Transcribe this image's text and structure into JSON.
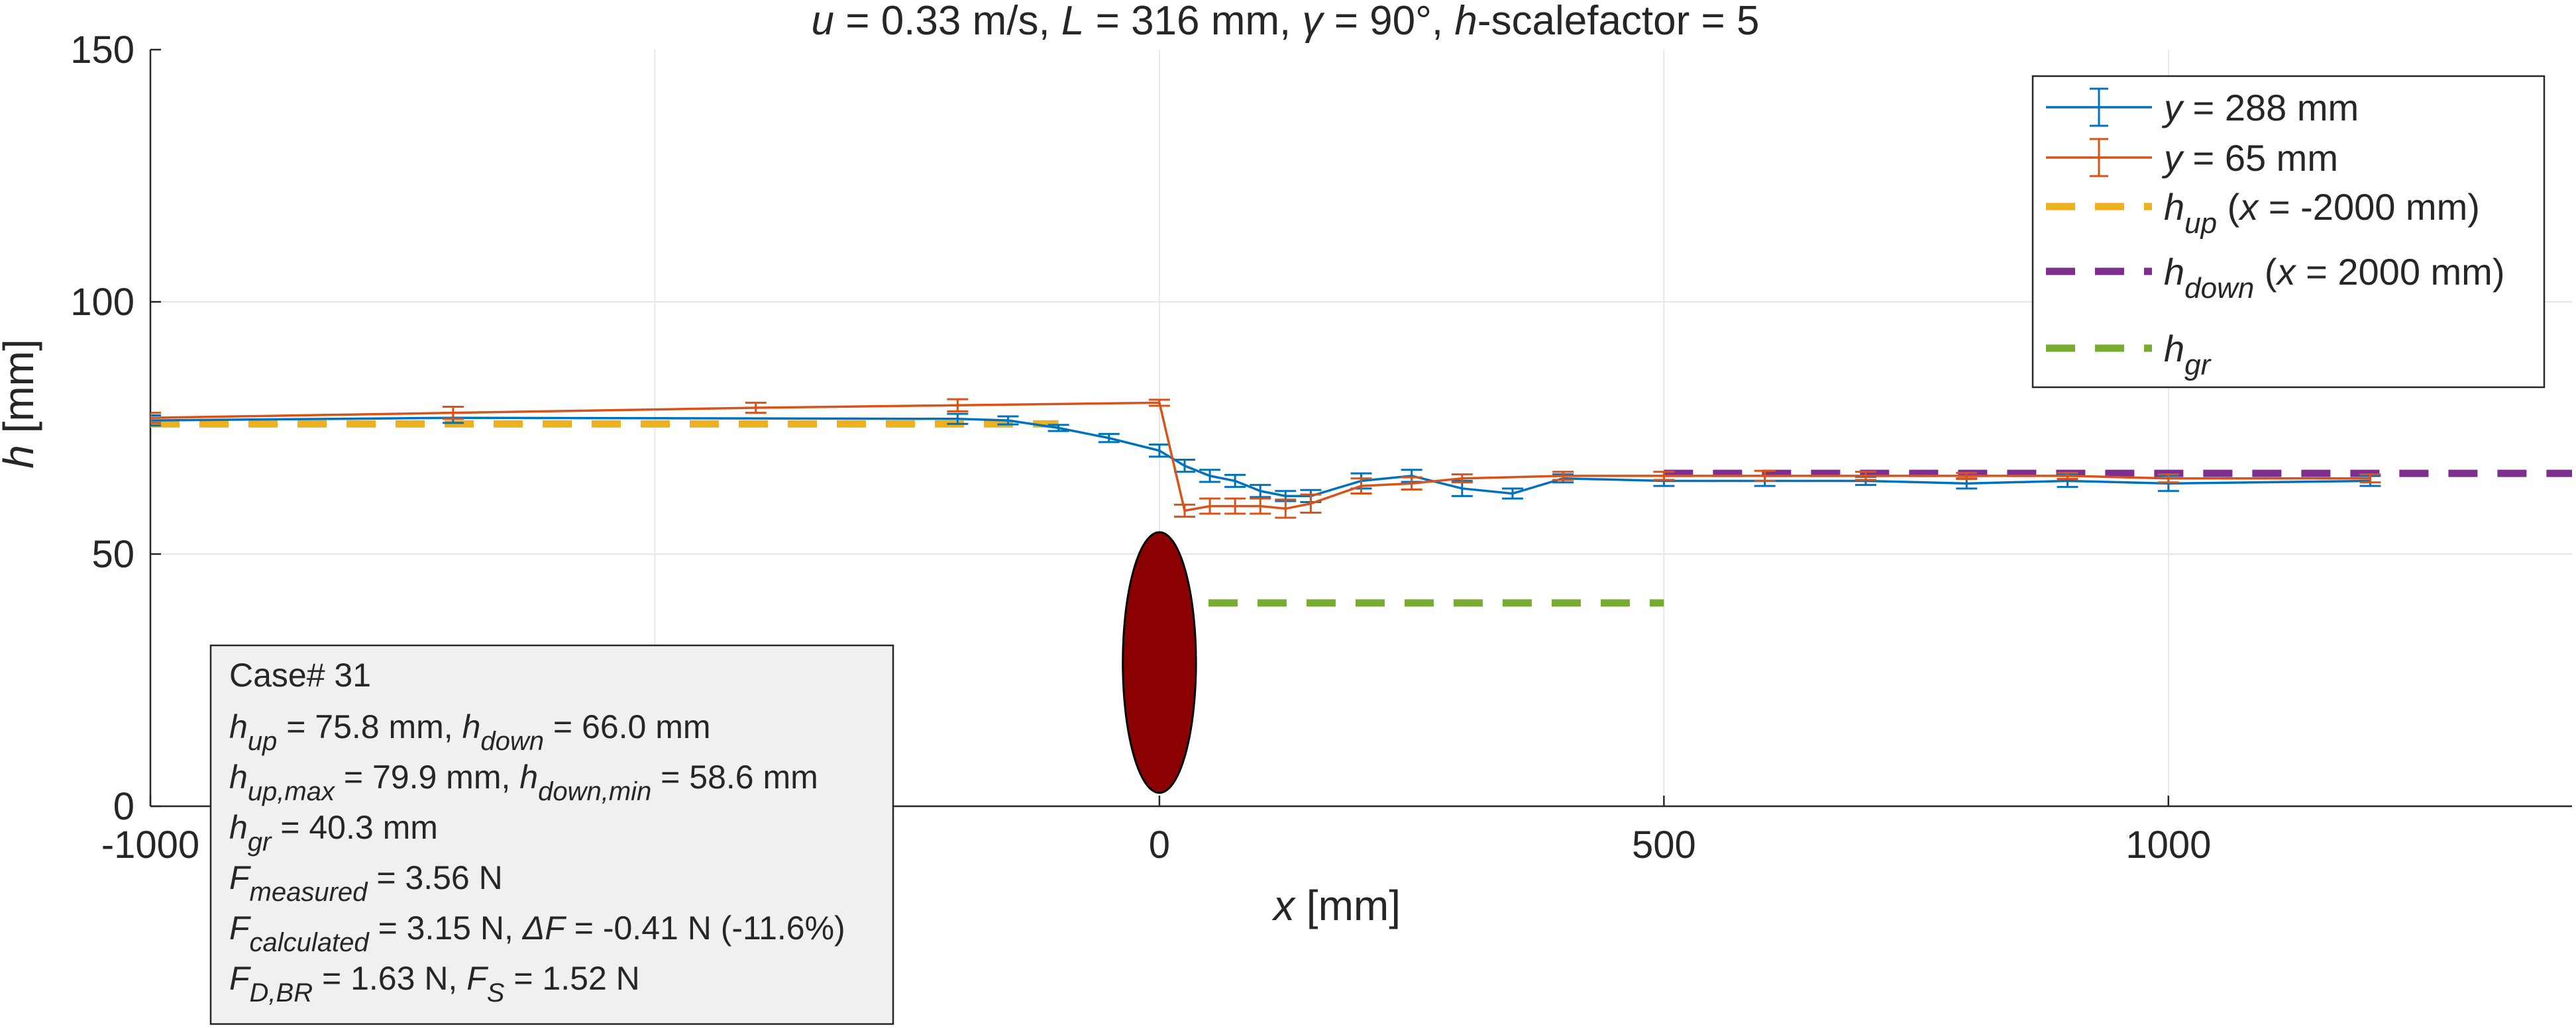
{
  "chart_data": {
    "type": "line",
    "title": "u = 0.33 m/s, L = 316 mm, γ = 90°, h-scalefactor = 5",
    "xlabel": "x [mm]",
    "ylabel": "h [mm]",
    "xlim": [
      -1000,
      1400
    ],
    "ylim": [
      0,
      150
    ],
    "xticks": [
      "-1000",
      "0",
      "500",
      "1000"
    ],
    "yticks": [
      "0",
      "50",
      "100",
      "150"
    ],
    "grid": true,
    "legend_position": "top-right",
    "series": [
      {
        "name": "y = 288 mm",
        "color": "#0072BD",
        "x": [
          -1000,
          -700,
          -200,
          -150,
          -100,
          -50,
          0,
          25,
          50,
          75,
          100,
          125,
          150,
          200,
          250,
          300,
          350,
          400,
          500,
          600,
          700,
          800,
          900,
          1000,
          1200
        ],
        "y": [
          76.5,
          77.0,
          76.8,
          76.5,
          75.0,
          73.0,
          70.5,
          67.5,
          65.5,
          64.5,
          62.5,
          61.5,
          61.5,
          64.5,
          65.5,
          63.0,
          62.0,
          65.0,
          64.5,
          64.5,
          64.5,
          64.0,
          64.5,
          64.0,
          64.5
        ],
        "err": [
          1.0,
          1.0,
          1.0,
          0.8,
          0.6,
          0.8,
          1.2,
          1.2,
          1.2,
          1.2,
          1.2,
          1.0,
          1.2,
          1.5,
          1.2,
          1.5,
          1.0,
          0.8,
          1.0,
          1.0,
          0.8,
          1.0,
          1.2,
          1.5,
          1.0
        ]
      },
      {
        "name": "y = 65 mm",
        "color": "#D95319",
        "x": [
          -1000,
          -700,
          -400,
          -200,
          0,
          25,
          50,
          75,
          100,
          125,
          150,
          200,
          250,
          300,
          400,
          500,
          600,
          700,
          800,
          900,
          1000,
          1200
        ],
        "y": [
          77.0,
          78.0,
          79.0,
          79.5,
          80.0,
          58.6,
          59.5,
          59.5,
          59.5,
          59.0,
          60.0,
          63.5,
          64.0,
          65.0,
          65.5,
          65.5,
          65.5,
          65.5,
          65.5,
          65.5,
          65.0,
          65.0
        ],
        "err": [
          1.0,
          1.2,
          1.0,
          1.2,
          0.6,
          1.2,
          1.5,
          1.5,
          1.5,
          1.8,
          1.8,
          1.5,
          1.2,
          0.8,
          0.8,
          0.8,
          1.0,
          0.8,
          0.6,
          0.6,
          0.8,
          0.8
        ]
      }
    ],
    "reference_lines": [
      {
        "name": "h_up (x = -2000 mm)",
        "color": "#EDB120",
        "x": [
          -1000,
          -100
        ],
        "y": 75.8
      },
      {
        "name": "h_down (x = 2000 mm)",
        "color": "#7E2F8E",
        "x": [
          500,
          1400
        ],
        "y": 66.0
      },
      {
        "name": "h_gr",
        "color": "#77AC30",
        "x": [
          0,
          500
        ],
        "y": 40.3
      }
    ],
    "obstacle": {
      "x": 0,
      "y_center": 28.5,
      "x_half_width": 25,
      "y_half_height": 24,
      "color": "#8B0000"
    },
    "legend": [
      {
        "main": "y",
        "rest": " = 288 mm",
        "sub": "",
        "style": "errorline",
        "color": "#0072BD"
      },
      {
        "main": "y",
        "rest": " = 65 mm",
        "sub": "",
        "style": "errorline",
        "color": "#D95319"
      },
      {
        "main": "h",
        "sub": "up",
        "rest": " (x = -2000 mm)",
        "style": "dashed",
        "color": "#EDB120"
      },
      {
        "main": "h",
        "sub": "down",
        "rest": " (x = 2000 mm)",
        "style": "dashed",
        "color": "#7E2F8E"
      },
      {
        "main": "h",
        "sub": "gr",
        "rest": "",
        "style": "dashed",
        "color": "#77AC30"
      }
    ],
    "annotation": {
      "case": "Case# 31",
      "lines": [
        [
          [
            "h",
            "up"
          ],
          [
            " = 75.8 mm, "
          ],
          [
            "h",
            "down"
          ],
          [
            " = 66.0 mm"
          ]
        ],
        [
          [
            "h",
            "up,max"
          ],
          [
            " = 79.9 mm, "
          ],
          [
            "h",
            "down,min"
          ],
          [
            " = 58.6 mm"
          ]
        ],
        [
          [
            "h",
            "gr"
          ],
          [
            " = 40.3 mm"
          ]
        ],
        [
          [
            "F",
            "measured"
          ],
          [
            " = 3.56 N"
          ]
        ],
        [
          [
            "F",
            "calculated"
          ],
          [
            " = 3.15 N, "
          ],
          [
            "ΔF",
            ""
          ],
          [
            " = -0.41 N (-11.6%)"
          ]
        ],
        [
          [
            "F",
            "D,BR"
          ],
          [
            " = 1.63 N, "
          ],
          [
            "F",
            "S"
          ],
          [
            " = 1.52 N"
          ]
        ]
      ]
    }
  }
}
